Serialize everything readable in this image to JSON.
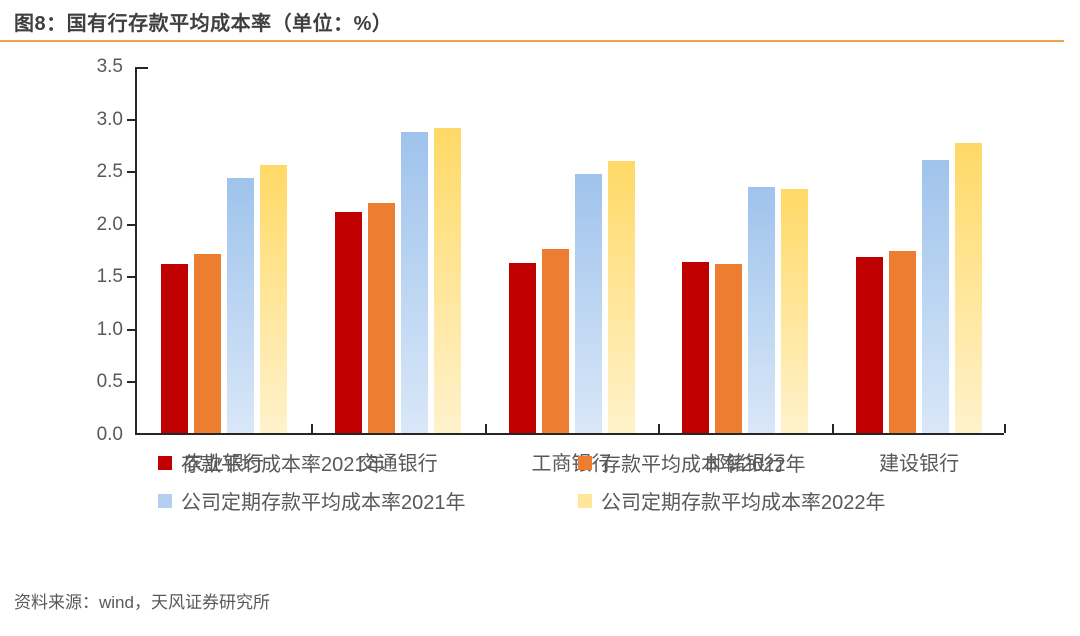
{
  "title": "图8：国有行存款平均成本率（单位：%）",
  "source": "资料来源：wind，天风证券研究所",
  "accent_rule_color": "#f0a251",
  "axis_color": "#262626",
  "text_color": "#595959",
  "chart_data": {
    "type": "bar",
    "title": "图8：国有行存款平均成本率（单位：%）",
    "unit": "%",
    "categories": [
      "农业银行",
      "交通银行",
      "工商银行",
      "邮储银行",
      "建设银行"
    ],
    "series": [
      {
        "name": "存款平均成本率2021年",
        "fill": {
          "type": "solid",
          "color": "#c00000"
        },
        "swatch": "#c00000",
        "values": [
          1.61,
          2.1,
          1.62,
          1.63,
          1.67
        ]
      },
      {
        "name": "存款平均成本率2022年",
        "fill": {
          "type": "solid",
          "color": "#ed7d31"
        },
        "swatch": "#ed7d31",
        "values": [
          1.7,
          2.19,
          1.75,
          1.61,
          1.73
        ]
      },
      {
        "name": "公司定期存款平均成本率2021年",
        "fill": {
          "type": "gradient",
          "top": "#9fc3ec",
          "bottom": "#d9e7f8"
        },
        "swatch": "#b5cff0",
        "values": [
          2.43,
          2.86,
          2.46,
          2.34,
          2.6
        ]
      },
      {
        "name": "公司定期存款平均成本率2022年",
        "fill": {
          "type": "gradient",
          "top": "#ffd966",
          "bottom": "#fff2cc"
        },
        "swatch": "#ffe699",
        "values": [
          2.55,
          2.9,
          2.59,
          2.32,
          2.76
        ]
      }
    ],
    "ylim": [
      0,
      3.5
    ],
    "ytick_step": 0.5,
    "ytick_labels": [
      "3.5",
      "3.0",
      "2.5",
      "2.0",
      "1.5",
      "1.0",
      "0.5",
      "0.0"
    ],
    "grid": false,
    "legend_position": "bottom"
  }
}
